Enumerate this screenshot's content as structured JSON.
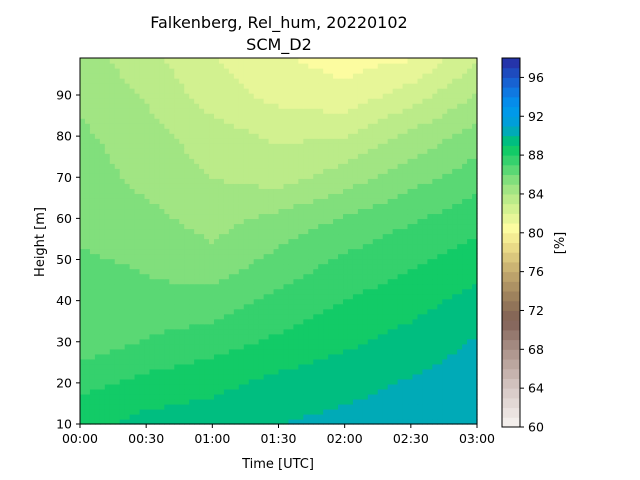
{
  "chart_data": {
    "type": "contour",
    "title": "Falkenberg, Rel_hum, 20220102",
    "subtitle": "SCM_D2",
    "xlabel": "Time [UTC]",
    "ylabel": "Height [m]",
    "colorbar_label": "[%]",
    "x_ticks": [
      "00:00",
      "00:30",
      "01:00",
      "01:30",
      "02:00",
      "02:30",
      "03:00"
    ],
    "x_hours": [
      0,
      0.5,
      1.0,
      1.5,
      2.0,
      2.5,
      3.0
    ],
    "y_ticks": [
      10,
      20,
      30,
      40,
      50,
      60,
      70,
      80,
      90
    ],
    "ylim": [
      10,
      99
    ],
    "xlim": [
      0,
      3
    ],
    "colorbar_ticks": [
      60,
      64,
      68,
      72,
      76,
      80,
      84,
      88,
      92,
      96
    ],
    "colorbar_range": [
      60,
      98
    ],
    "level_step": 1,
    "times": [
      0,
      0.5,
      1.0,
      1.5,
      2.0,
      2.5,
      3.0
    ],
    "heights": [
      10,
      20,
      30,
      40,
      50,
      60,
      70,
      80,
      90,
      99
    ],
    "rel_hum": [
      [
        88.6,
        89.4,
        89.6,
        90.0,
        90.3,
        90.4,
        90.1
      ],
      [
        87.7,
        88.3,
        88.7,
        89.3,
        89.7,
        90.1,
        90.6
      ],
      [
        86.4,
        87.1,
        87.6,
        88.2,
        88.8,
        89.4,
        90.1
      ],
      [
        86.3,
        86.2,
        86.4,
        87.3,
        88.0,
        88.6,
        89.4
      ],
      [
        86.1,
        85.9,
        85.3,
        86.3,
        87.2,
        87.8,
        88.5
      ],
      [
        85.8,
        85.3,
        84.6,
        85.3,
        86.1,
        86.9,
        87.6
      ],
      [
        85.5,
        84.7,
        84.0,
        83.6,
        84.5,
        85.6,
        86.6
      ],
      [
        85.2,
        84.4,
        83.5,
        82.8,
        83.0,
        84.3,
        85.4
      ],
      [
        84.8,
        83.9,
        82.5,
        81.7,
        81.3,
        82.5,
        84.1
      ],
      [
        84.6,
        83.3,
        82.1,
        81.1,
        80.6,
        80.9,
        82.9
      ]
    ]
  }
}
